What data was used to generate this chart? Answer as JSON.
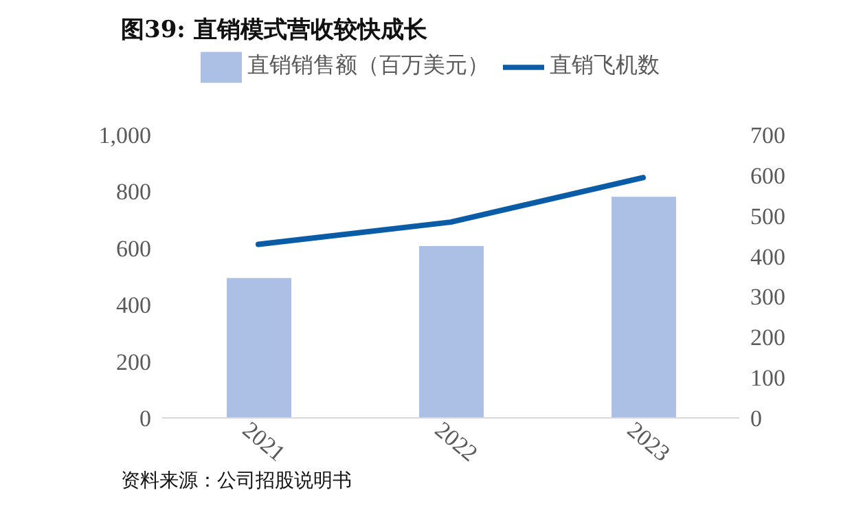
{
  "chart_data": {
    "type": "bar",
    "title": "图39:  直销模式营收较快成长",
    "categories": [
      "2021",
      "2022",
      "2023"
    ],
    "series": [
      {
        "name": "直销销售额（百万美元）",
        "color": "#abc0e4",
        "values": [
          494,
          607,
          781
        ]
      },
      {
        "name": "直销飞机数",
        "type": "line",
        "axis": "y2",
        "color": "#0a5ca6",
        "values": [
          429,
          484,
          594
        ]
      }
    ],
    "ylim": [
      0,
      1000
    ],
    "yticks": [
      0,
      {
        "value": 200,
        "label": "200"
      },
      {
        "value": 400,
        "label": "400"
      },
      {
        "value": 600,
        "label": "600"
      },
      {
        "value": 800,
        "label": "800"
      },
      {
        "value": 1000,
        "label": "1,000"
      }
    ],
    "y2lim": [
      0,
      700
    ],
    "y2ticks": [
      0,
      100,
      200,
      300,
      400,
      500,
      600,
      700
    ],
    "legend": "top",
    "marker": "none",
    "annotations": [
      "资料来源：公司招股说明书"
    ]
  }
}
